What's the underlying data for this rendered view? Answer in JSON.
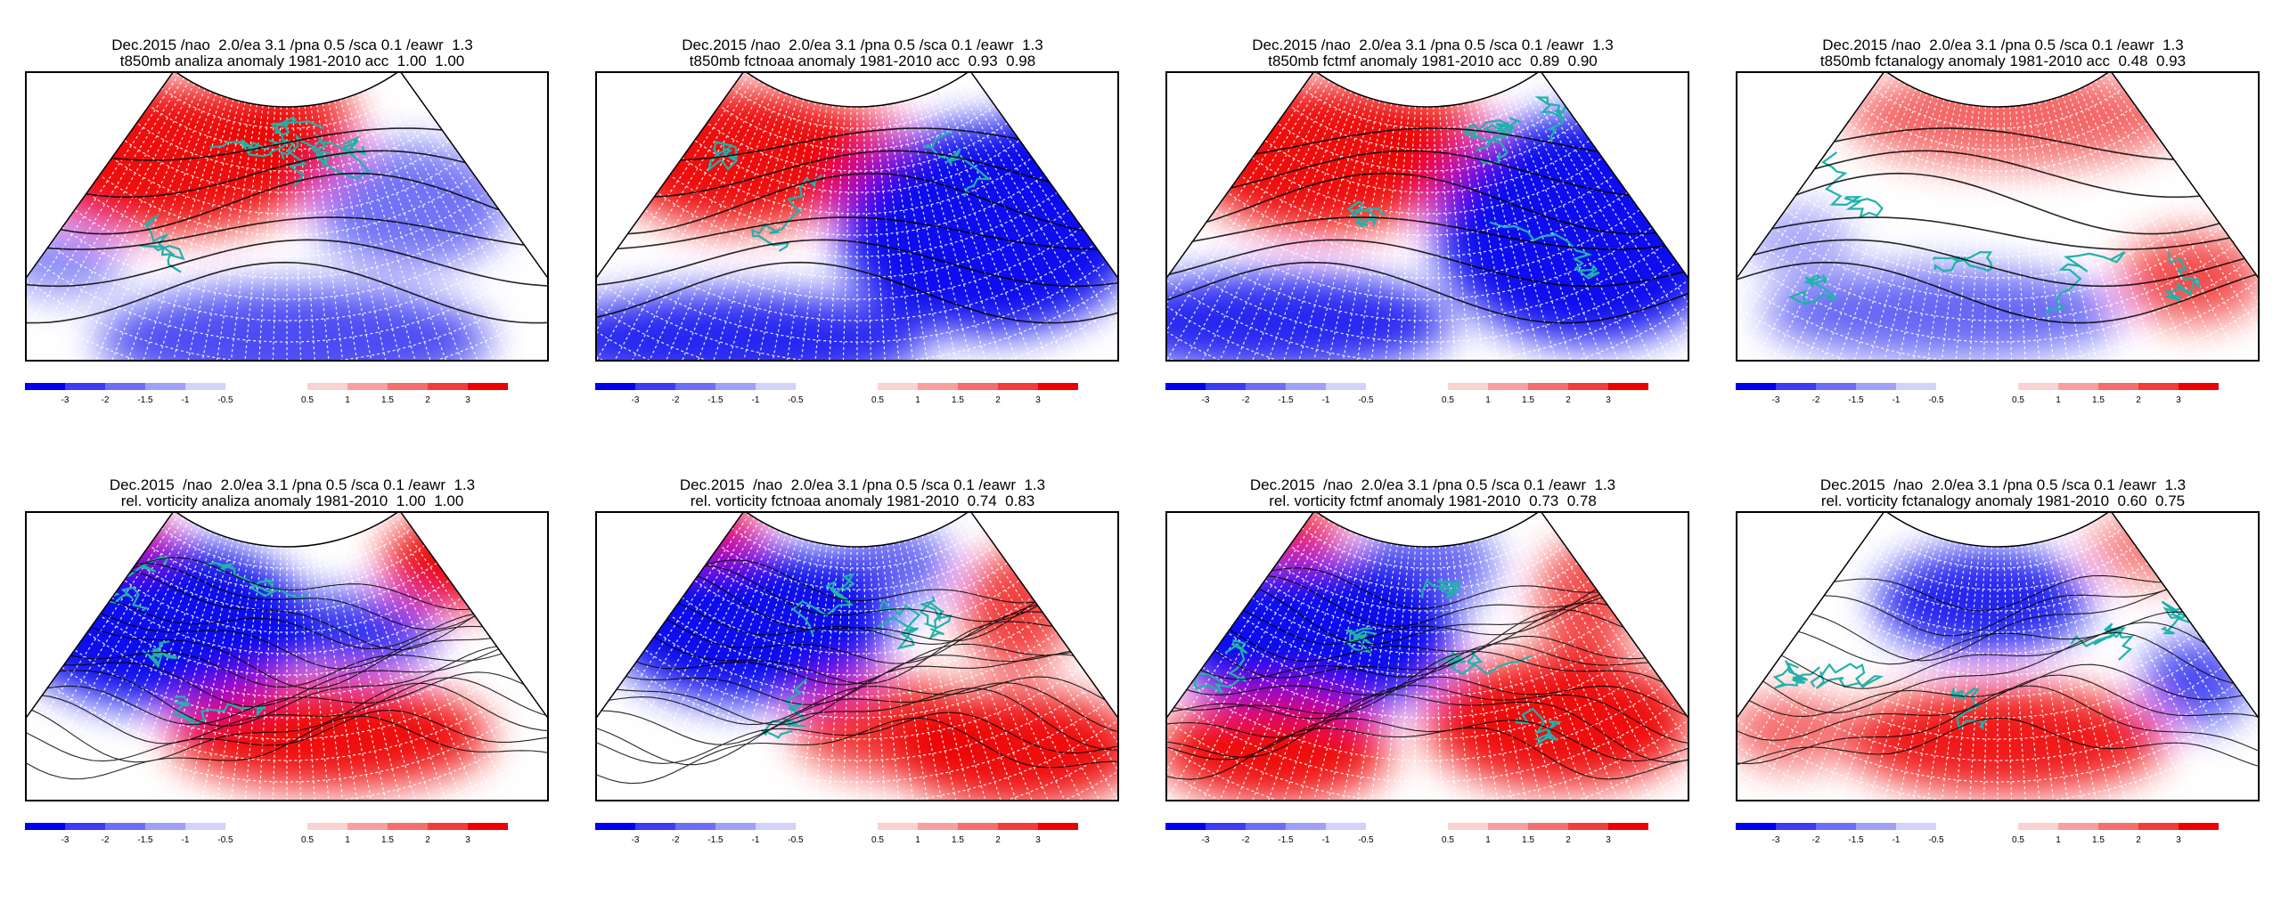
{
  "panels": [
    {
      "line1": "Dec.2015 /nao  2.0/ea 3.1 /pna 0.5 /sca 0.1 /eawr  1.3",
      "line2": "t850mb analiza anomaly 1981-2010 acc  1.00  1.00",
      "field": "t850mb",
      "model": "analiza",
      "acc": [
        "1.00",
        "1.00"
      ]
    },
    {
      "line1": "Dec.2015 /nao  2.0/ea 3.1 /pna 0.5 /sca 0.1 /eawr  1.3",
      "line2": "t850mb fctnoaa anomaly 1981-2010 acc  0.93  0.98",
      "field": "t850mb",
      "model": "fctnoaa",
      "acc": [
        "0.93",
        "0.98"
      ]
    },
    {
      "line1": "Dec.2015 /nao  2.0/ea 3.1 /pna 0.5 /sca 0.1 /eawr  1.3",
      "line2": "t850mb fctmf anomaly 1981-2010 acc  0.89  0.90",
      "field": "t850mb",
      "model": "fctmf",
      "acc": [
        "0.89",
        "0.90"
      ]
    },
    {
      "line1": "Dec.2015 /nao  2.0/ea 3.1 /pna 0.5 /sca 0.1 /eawr  1.3",
      "line2": "t850mb fctanalogy anomaly 1981-2010 acc  0.48  0.93",
      "field": "t850mb",
      "model": "fctanalogy",
      "acc": [
        "0.48",
        "0.93"
      ]
    },
    {
      "line1": "Dec.2015  /nao  2.0/ea 3.1 /pna 0.5 /sca 0.1 /eawr  1.3",
      "line2": "rel. vorticity analiza anomaly 1981-2010  1.00  1.00",
      "field": "rel. vorticity",
      "model": "analiza",
      "acc": [
        "1.00",
        "1.00"
      ]
    },
    {
      "line1": "Dec.2015  /nao  2.0/ea 3.1 /pna 0.5 /sca 0.1 /eawr  1.3",
      "line2": "rel. vorticity fctnoaa anomaly 1981-2010  0.74  0.83",
      "field": "rel. vorticity",
      "model": "fctnoaa",
      "acc": [
        "0.74",
        "0.83"
      ]
    },
    {
      "line1": "Dec.2015  /nao  2.0/ea 3.1 /pna 0.5 /sca 0.1 /eawr  1.3",
      "line2": "rel. vorticity fctmf anomaly 1981-2010  0.73  0.78",
      "field": "rel. vorticity",
      "model": "fctmf",
      "acc": [
        "0.73",
        "0.78"
      ]
    },
    {
      "line1": "Dec.2015  /nao  2.0/ea 3.1 /pna 0.5 /sca 0.1 /eawr  1.3",
      "line2": "rel. vorticity fctanalogy anomaly 1981-2010  0.60  0.75",
      "field": "rel. vorticity",
      "model": "fctanalogy",
      "acc": [
        "0.60",
        "0.75"
      ]
    }
  ],
  "colorbar": {
    "neg_labels": [
      "-3",
      "-2",
      "-1.5",
      "-1",
      "-0.5"
    ],
    "pos_labels": [
      "0.5",
      "1",
      "1.5",
      "2",
      "3"
    ],
    "neg_colors": [
      "#0000ee",
      "#3c3cf2",
      "#6e6ef5",
      "#a0a0f8",
      "#d2d2fb"
    ],
    "pos_colors": [
      "#fbd2d2",
      "#f8a0a0",
      "#f56e6e",
      "#f23c3c",
      "#ee0000"
    ]
  },
  "colors": {
    "coast": "#20b2aa",
    "contour": "#000000",
    "grid": "#ffffff"
  }
}
